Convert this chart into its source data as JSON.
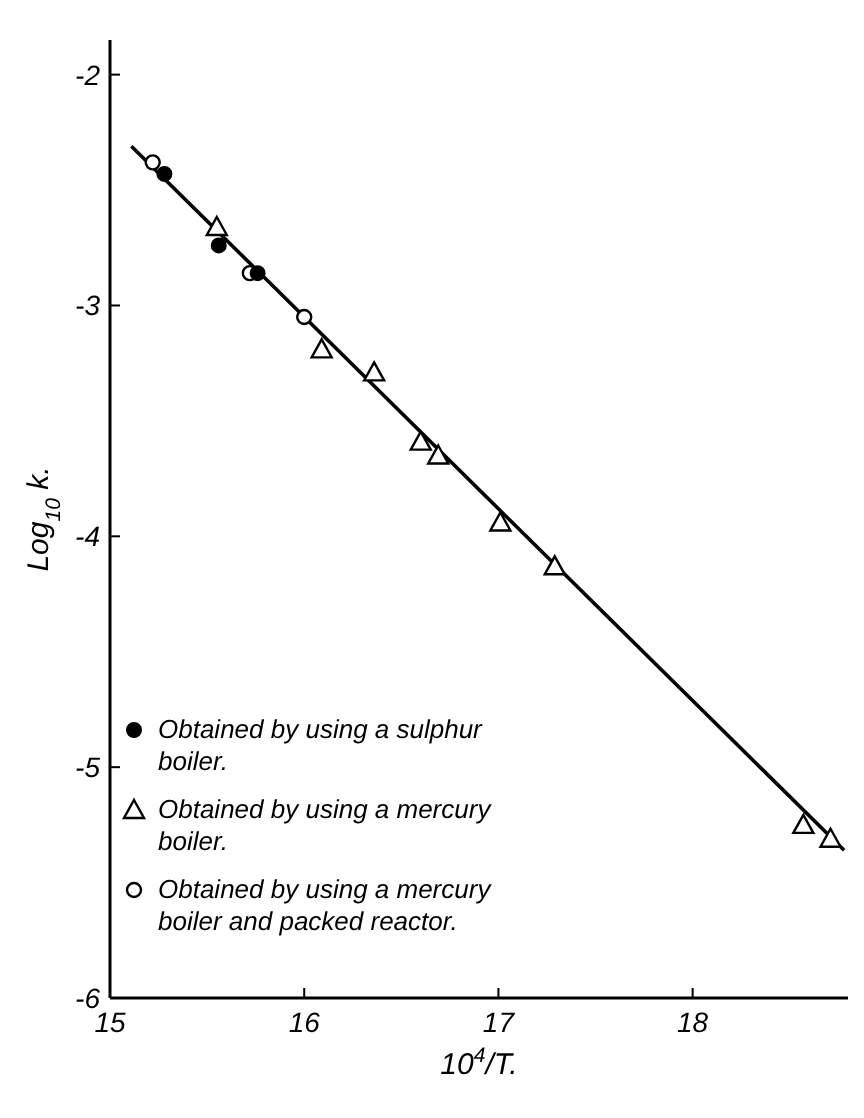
{
  "chart_data": {
    "type": "scatter",
    "xlabel": "10$^{4}$/T.",
    "ylabel": "Log$_{10}$ k.",
    "xlim": [
      15,
      18.8
    ],
    "ylim": [
      -6,
      -1.85
    ],
    "xticks": [
      15,
      16,
      17,
      18
    ],
    "yticks": [
      -2,
      -3,
      -4,
      -5,
      -6
    ],
    "grid": false,
    "legend": "bottom left",
    "series": [
      {
        "name": "Obtained by using a sulphur boiler.",
        "color": "#000000",
        "marker": "filled-circle",
        "x": [
          15.28,
          15.56,
          15.76
        ],
        "values": [
          -2.43,
          -2.74,
          -2.86
        ]
      },
      {
        "name": "Obtained by using a mercury boiler.",
        "color": "#000000",
        "marker": "triangle",
        "x": [
          15.55,
          16.09,
          16.36,
          16.6,
          16.69,
          17.01,
          17.29,
          18.57,
          18.71
        ],
        "values": [
          -2.66,
          -3.19,
          -3.29,
          -3.59,
          -3.65,
          -3.94,
          -4.13,
          -5.25,
          -5.31
        ]
      },
      {
        "name": "Obtained by using a mercury boiler and packed reactor.",
        "color": "#000000",
        "marker": "circle",
        "x": [
          15.22,
          15.72,
          16.0
        ],
        "values": [
          -2.38,
          -2.86,
          -3.05
        ]
      },
      {
        "type": "line",
        "color": "#000000",
        "x": [
          15.11,
          18.78
        ],
        "values": [
          -2.31,
          -5.36
        ]
      }
    ]
  }
}
